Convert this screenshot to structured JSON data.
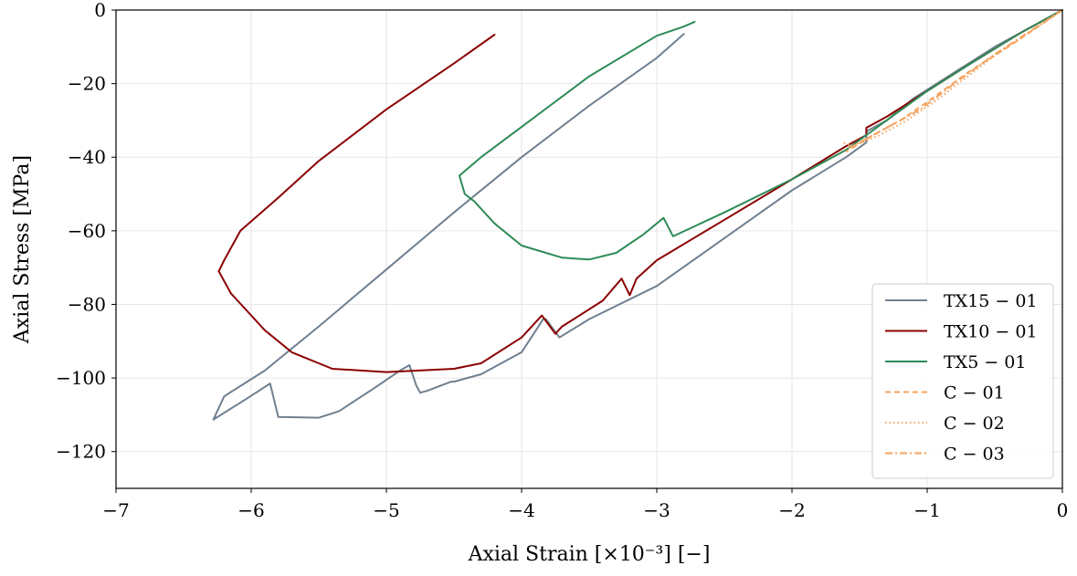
{
  "chart_data": {
    "type": "line",
    "xlabel": "Axial Strain [×10⁻³] [−]",
    "ylabel": "Axial Stress [MPa]",
    "xlim": [
      -7,
      0
    ],
    "ylim": [
      -130,
      0
    ],
    "xticks": [
      -7,
      -6,
      -5,
      -4,
      -3,
      -2,
      -1,
      0
    ],
    "xtick_labels": [
      "−7",
      "−6",
      "−5",
      "−4",
      "−3",
      "−2",
      "−1",
      "0"
    ],
    "yticks": [
      -120,
      -100,
      -80,
      -60,
      -40,
      -20,
      0
    ],
    "ytick_labels": [
      "−120",
      "−100",
      "−80",
      "−60",
      "−40",
      "−20",
      "0"
    ],
    "grid": true,
    "legend_position": "lower-right",
    "series": [
      {
        "name": "TX15 − 01",
        "color": "#708090",
        "dash": "solid",
        "points": [
          [
            0,
            0
          ],
          [
            -0.2,
            -4
          ],
          [
            -0.5,
            -10
          ],
          [
            -0.8,
            -17
          ],
          [
            -1.1,
            -24
          ],
          [
            -1.3,
            -30
          ],
          [
            -1.45,
            -33
          ],
          [
            -1.45,
            -36
          ],
          [
            -1.6,
            -40
          ],
          [
            -2.0,
            -49
          ],
          [
            -2.5,
            -62
          ],
          [
            -3.0,
            -75
          ],
          [
            -3.5,
            -84
          ],
          [
            -3.72,
            -89
          ],
          [
            -3.82,
            -84
          ],
          [
            -3.84,
            -84
          ],
          [
            -4.0,
            -93
          ],
          [
            -4.3,
            -99
          ],
          [
            -4.5,
            -101
          ],
          [
            -4.52,
            -101
          ],
          [
            -4.7,
            -103.5
          ],
          [
            -4.75,
            -104
          ],
          [
            -4.78,
            -102
          ],
          [
            -4.83,
            -96.5
          ],
          [
            -4.9,
            -98
          ],
          [
            -5.1,
            -103
          ],
          [
            -5.35,
            -109
          ],
          [
            -5.5,
            -110.8
          ],
          [
            -5.8,
            -110.6
          ],
          [
            -5.86,
            -101.5
          ],
          [
            -6.05,
            -106
          ],
          [
            -6.28,
            -111.3
          ],
          [
            -6.2,
            -105
          ],
          [
            -5.9,
            -98
          ],
          [
            -5.5,
            -86
          ],
          [
            -5.0,
            -70.5
          ],
          [
            -4.5,
            -55
          ],
          [
            -4.0,
            -40
          ],
          [
            -3.5,
            -26
          ],
          [
            -3.0,
            -13
          ],
          [
            -2.8,
            -6.5
          ]
        ]
      },
      {
        "name": "TX10 − 01",
        "color": "#8b0000",
        "dash": "solid",
        "points": [
          [
            0,
            0
          ],
          [
            -0.3,
            -6
          ],
          [
            -0.7,
            -15
          ],
          [
            -1.0,
            -22
          ],
          [
            -1.3,
            -29
          ],
          [
            -1.45,
            -32
          ],
          [
            -1.45,
            -34
          ],
          [
            -1.6,
            -37
          ],
          [
            -2.0,
            -46
          ],
          [
            -2.5,
            -57
          ],
          [
            -3.0,
            -68
          ],
          [
            -3.15,
            -73
          ],
          [
            -3.2,
            -77.5
          ],
          [
            -3.26,
            -73
          ],
          [
            -3.4,
            -79
          ],
          [
            -3.7,
            -86
          ],
          [
            -3.75,
            -88
          ],
          [
            -3.85,
            -83
          ],
          [
            -4.0,
            -89
          ],
          [
            -4.3,
            -96
          ],
          [
            -4.5,
            -97.5
          ],
          [
            -5.0,
            -98.4
          ],
          [
            -5.4,
            -97.5
          ],
          [
            -5.7,
            -93
          ],
          [
            -5.9,
            -87
          ],
          [
            -6.05,
            -81
          ],
          [
            -6.15,
            -77
          ],
          [
            -6.24,
            -71
          ],
          [
            -6.2,
            -68
          ],
          [
            -6.08,
            -60
          ],
          [
            -5.8,
            -51
          ],
          [
            -5.5,
            -41
          ],
          [
            -5.0,
            -27
          ],
          [
            -4.5,
            -14.5
          ],
          [
            -4.2,
            -6.7
          ]
        ]
      },
      {
        "name": "TX5 − 01",
        "color": "#2e8b57",
        "dash": "solid",
        "points": [
          [
            0,
            0
          ],
          [
            -0.3,
            -6
          ],
          [
            -0.7,
            -15
          ],
          [
            -1.0,
            -22
          ],
          [
            -1.3,
            -30
          ],
          [
            -1.45,
            -34
          ],
          [
            -1.6,
            -38
          ],
          [
            -2.0,
            -46
          ],
          [
            -2.5,
            -55
          ],
          [
            -2.88,
            -61.5
          ],
          [
            -2.95,
            -56.5
          ],
          [
            -3.1,
            -61
          ],
          [
            -3.3,
            -66
          ],
          [
            -3.5,
            -67.8
          ],
          [
            -3.7,
            -67.3
          ],
          [
            -4.0,
            -64
          ],
          [
            -4.2,
            -58
          ],
          [
            -4.35,
            -52
          ],
          [
            -4.42,
            -50
          ],
          [
            -4.46,
            -45
          ],
          [
            -4.3,
            -40
          ],
          [
            -3.9,
            -29
          ],
          [
            -3.5,
            -18
          ],
          [
            -3.0,
            -7
          ],
          [
            -2.8,
            -4.5
          ],
          [
            -2.72,
            -3.2
          ]
        ]
      },
      {
        "name": "C − 01",
        "color": "#f4a460",
        "dash": "6,4",
        "points": [
          [
            0,
            0
          ],
          [
            -0.2,
            -5
          ],
          [
            -0.4,
            -10
          ],
          [
            -0.7,
            -17
          ],
          [
            -1.0,
            -25
          ],
          [
            -1.2,
            -30
          ],
          [
            -1.4,
            -34
          ],
          [
            -1.6,
            -38.5
          ]
        ]
      },
      {
        "name": "C − 02",
        "color": "#f4a460",
        "dash": "1.5,3",
        "points": [
          [
            0,
            0
          ],
          [
            -0.2,
            -5
          ],
          [
            -0.45,
            -11
          ],
          [
            -0.7,
            -18
          ],
          [
            -0.95,
            -25
          ],
          [
            -1.15,
            -30
          ],
          [
            -1.35,
            -34
          ],
          [
            -1.55,
            -37
          ],
          [
            -1.62,
            -36
          ]
        ]
      },
      {
        "name": "C − 03",
        "color": "#f4a460",
        "dash": "8,3,2,3",
        "points": [
          [
            0,
            0
          ],
          [
            -0.25,
            -6
          ],
          [
            -0.5,
            -12
          ],
          [
            -0.8,
            -20
          ],
          [
            -1.05,
            -27
          ],
          [
            -1.25,
            -31
          ],
          [
            -1.45,
            -35
          ],
          [
            -1.58,
            -37.5
          ]
        ]
      }
    ]
  }
}
